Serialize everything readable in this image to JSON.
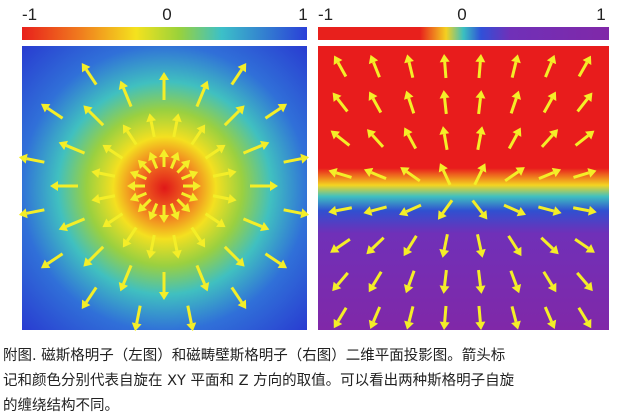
{
  "figure": {
    "left_panel": {
      "colorbar_ticks": [
        -1,
        0,
        1
      ]
    },
    "right_panel": {
      "colorbar_ticks": [
        -1,
        0,
        1
      ]
    },
    "caption_lines": [
      "附图. 磁斯格明子（左图）和磁畴壁斯格明子（右图）二维平面投影图。箭头标",
      "记和颜色分别代表自旋在 XY 平面和 Z 方向的取值。可以看出两种斯格明子自旋",
      "的缠绕结构不同。"
    ]
  }
}
